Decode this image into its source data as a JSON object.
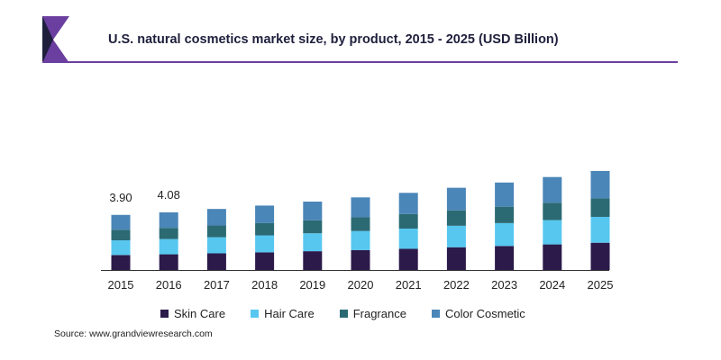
{
  "header": {
    "title": "U.S. natural cosmetics market size, by product, 2015 - 2025 (USD Billion)",
    "logo_icon": "grandview-logo-icon"
  },
  "source": "Source: www.grandviewresearch.com",
  "colors": {
    "skin_care": "#2b1a4a",
    "hair_care": "#57c7f0",
    "fragrance": "#2b6a73",
    "color_cosmetic": "#4a86b8",
    "accent": "#6b3fa0"
  },
  "chart_data": {
    "type": "bar",
    "stacked": true,
    "title": "U.S. natural cosmetics market size, by product, 2015 - 2025 (USD Billion)",
    "xlabel": "",
    "ylabel": "",
    "grid": false,
    "legend_position": "bottom",
    "categories": [
      "2015",
      "2016",
      "2017",
      "2018",
      "2019",
      "2020",
      "2021",
      "2022",
      "2023",
      "2024",
      "2025"
    ],
    "series": [
      {
        "name": "Skin Care",
        "color": "#2b1a4a",
        "values": [
          1.06,
          1.11,
          1.18,
          1.25,
          1.33,
          1.41,
          1.5,
          1.61,
          1.7,
          1.81,
          1.93
        ]
      },
      {
        "name": "Hair Care",
        "color": "#57c7f0",
        "values": [
          1.04,
          1.08,
          1.14,
          1.2,
          1.27,
          1.35,
          1.43,
          1.52,
          1.62,
          1.72,
          1.83
        ]
      },
      {
        "name": "Fragrance",
        "color": "#2b6a73",
        "values": [
          0.75,
          0.79,
          0.83,
          0.87,
          0.92,
          0.97,
          1.03,
          1.09,
          1.16,
          1.23,
          1.31
        ]
      },
      {
        "name": "Color Cosmetic",
        "color": "#4a86b8",
        "values": [
          1.05,
          1.1,
          1.17,
          1.24,
          1.32,
          1.41,
          1.5,
          1.6,
          1.71,
          1.82,
          1.94
        ]
      }
    ],
    "ylim": [
      0,
      8
    ],
    "data_labels": [
      {
        "category": "2015",
        "text": "3.90"
      },
      {
        "category": "2016",
        "text": "4.08"
      }
    ]
  }
}
